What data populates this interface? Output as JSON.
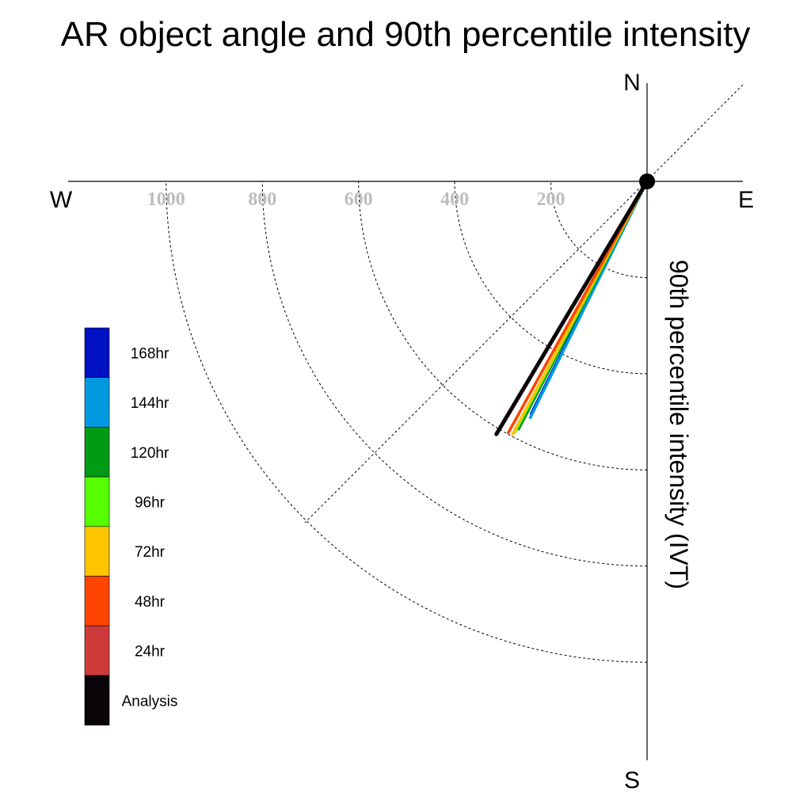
{
  "chart_data": {
    "type": "polar-vector",
    "title": "AR object angle and 90th percentile intensity",
    "ylabel": "90th percentile intensity (IVT)",
    "compass": {
      "n": "N",
      "e": "E",
      "s": "S",
      "w": "W"
    },
    "radial_ticks": [
      {
        "value": 200,
        "label": "200"
      },
      {
        "value": 400,
        "label": "400"
      },
      {
        "value": 600,
        "label": "600"
      },
      {
        "value": 800,
        "label": "800"
      },
      {
        "value": 1000,
        "label": "1000"
      }
    ],
    "rmax": 1200,
    "series": [
      {
        "name": "168hr",
        "color": "#0011c4",
        "angle_deg": 206.5,
        "intensity": 540
      },
      {
        "name": "144hr",
        "color": "#0099e0",
        "angle_deg": 206.3,
        "intensity": 548
      },
      {
        "name": "120hr",
        "color": "#009a14",
        "angle_deg": 207.4,
        "intensity": 580
      },
      {
        "name": "96hr",
        "color": "#55ff00",
        "angle_deg": 207.8,
        "intensity": 590
      },
      {
        "name": "72hr",
        "color": "#ffc400",
        "angle_deg": 208.0,
        "intensity": 596
      },
      {
        "name": "48hr",
        "color": "#ff4400",
        "angle_deg": 208.9,
        "intensity": 597
      },
      {
        "name": "24hr",
        "color": "#cc3a3a",
        "angle_deg": 210.7,
        "intensity": 612
      },
      {
        "name": "Analysis",
        "color": "#0a0308",
        "angle_deg": 210.8,
        "intensity": 612
      }
    ]
  }
}
